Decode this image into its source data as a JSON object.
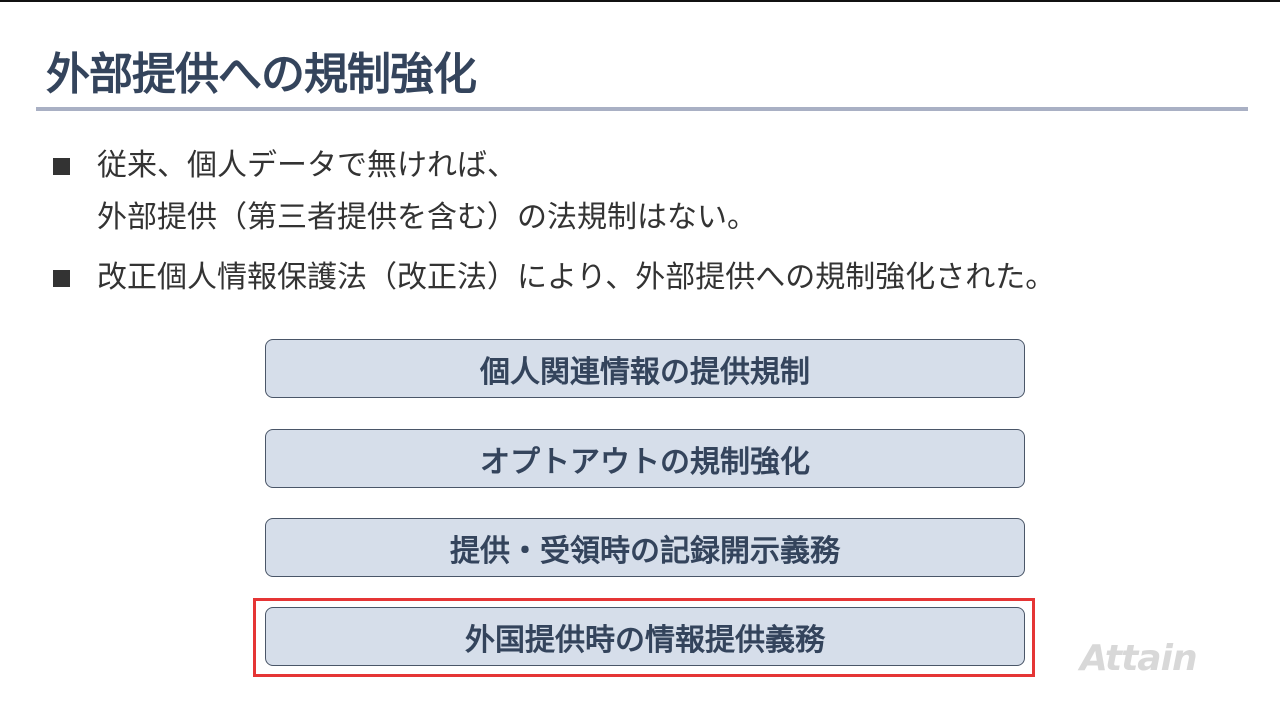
{
  "slide": {
    "title": "外部提供への規制強化",
    "bullets": [
      {
        "lines": [
          "従来、個人データで無ければ、",
          "外部提供（第三者提供を含む）の法規制はない。"
        ]
      },
      {
        "lines": [
          "改正個人情報保護法（改正法）により、外部提供への規制強化された。"
        ]
      }
    ],
    "boxes": [
      {
        "label": "個人関連情報の提供規制",
        "highlighted": false
      },
      {
        "label": "オプトアウトの規制強化",
        "highlighted": false
      },
      {
        "label": "提供・受領時の記録開示義務",
        "highlighted": false
      },
      {
        "label": "外国提供時の情報提供義務",
        "highlighted": true
      }
    ],
    "logo": "Attain",
    "colors": {
      "title": "#34445c",
      "box_fill": "#d6deea",
      "highlight": "#e53535",
      "rule": "#a9b0c4"
    }
  }
}
